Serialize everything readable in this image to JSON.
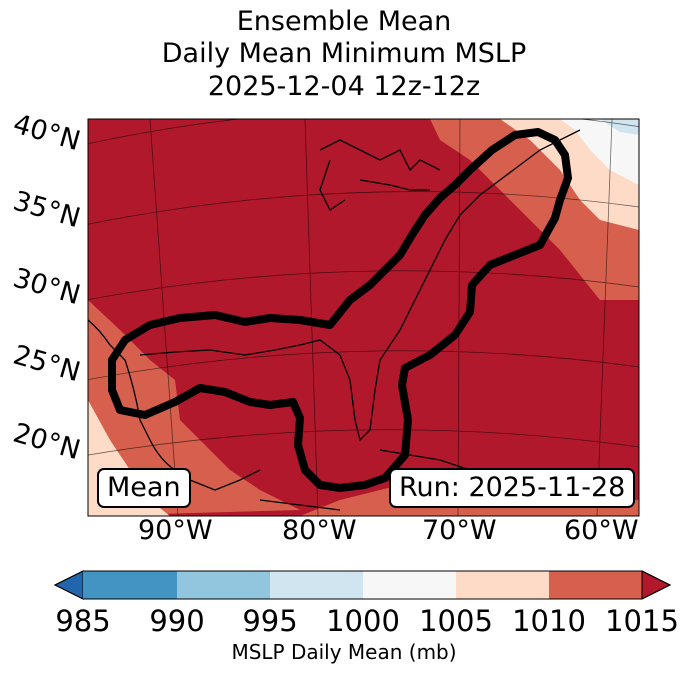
{
  "title": {
    "line1": "Ensemble Mean",
    "line2": "Daily Mean Minimum MSLP",
    "line3": "2025-12-04 12z-12z"
  },
  "lat_labels": [
    "40°N",
    "35°N",
    "30°N",
    "25°N",
    "20°N"
  ],
  "lon_labels": [
    "90°W",
    "80°W",
    "70°W",
    "60°W"
  ],
  "legend_box": "Mean",
  "run_box": "Run: 2025-11-28",
  "colorbar": {
    "ticks": [
      "985",
      "990",
      "995",
      "1000",
      "1005",
      "1010",
      "1015"
    ],
    "label": "MSLP Daily Mean (mb)",
    "colors": [
      "#2166ac",
      "#4393c3",
      "#92c5de",
      "#d1e5f0",
      "#f7f7f7",
      "#fddbc7",
      "#d6604d",
      "#b2182b"
    ]
  },
  "fill_colors": {
    "dark_red": "#b2182b",
    "red": "#d6604d",
    "salmon": "#fddbc7",
    "white": "#f7f7f7",
    "light_blue": "#d1e5f0"
  }
}
